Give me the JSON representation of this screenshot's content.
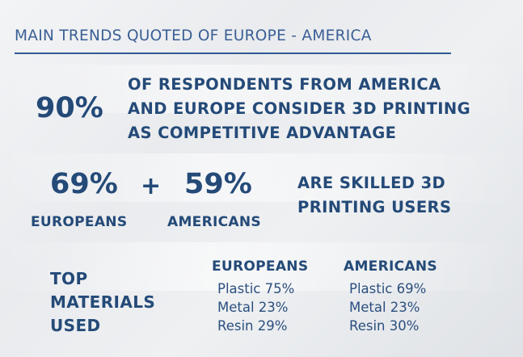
{
  "title": "MAIN TRENDS QUOTED OF EUROPE - AMERICA",
  "headline": {
    "percent": "90%",
    "lines": [
      "OF RESPONDENTS FROM AMERICA",
      "AND EUROPE CONSIDER 3D PRINTING",
      "AS COMPETITIVE ADVANTAGE"
    ]
  },
  "skilled": {
    "europeans_percent": "69%",
    "plus": "+",
    "americans_percent": "59%",
    "europeans_label": "EUROPEANS",
    "americans_label": "AMERICANS",
    "lines": [
      "ARE SKILLED 3D",
      "PRINTING USERS"
    ]
  },
  "materials": {
    "heading_lines": [
      "TOP",
      "MATERIALS",
      "USED"
    ],
    "columns": [
      {
        "name": "EUROPEANS",
        "items": [
          "Plastic 75%",
          "Metal 23%",
          "Resin 29%"
        ]
      },
      {
        "name": "AMERICANS",
        "items": [
          "Plastic 69%",
          "Metal 23%",
          "Resin 30%"
        ]
      }
    ]
  }
}
